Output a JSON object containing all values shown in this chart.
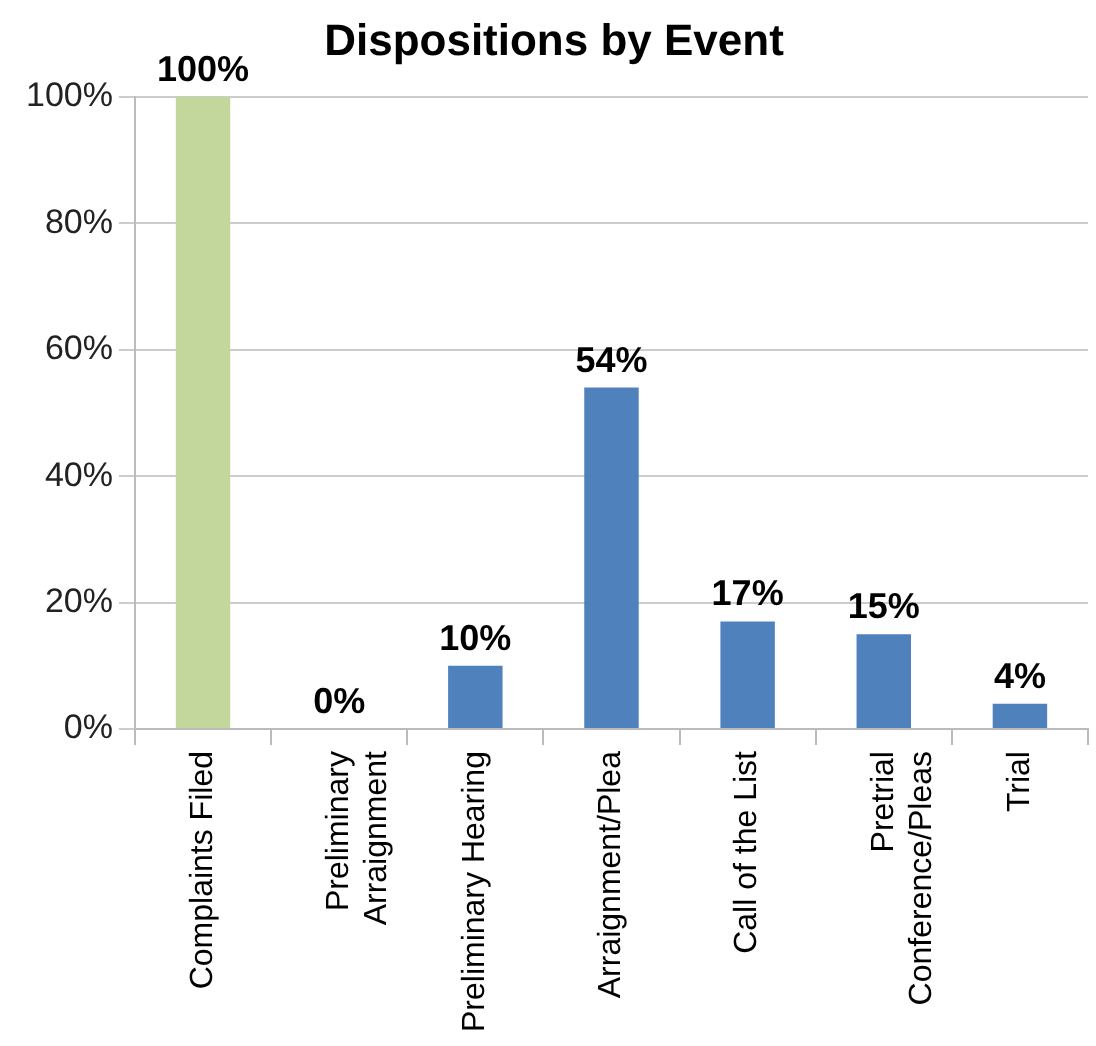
{
  "chart_data": {
    "type": "bar",
    "title": "Dispositions by Event",
    "categories": [
      "Complaints Filed",
      "Preliminary Arraignment",
      "Preliminary Hearing",
      "Arraignment/Plea",
      "Call of the List",
      "Pretrial Conference/Pleas",
      "Trial"
    ],
    "values": [
      100,
      0,
      10,
      54,
      17,
      15,
      4
    ],
    "colors": [
      "#c3d69b",
      "#4f81bd",
      "#4f81bd",
      "#4f81bd",
      "#4f81bd",
      "#4f81bd",
      "#4f81bd"
    ],
    "value_labels": [
      "100%",
      "0%",
      "10%",
      "54%",
      "17%",
      "15%",
      "4%"
    ],
    "ylim": [
      0,
      100
    ],
    "yticks": [
      {
        "value": 0,
        "label": "0%"
      },
      {
        "value": 20,
        "label": "20%"
      },
      {
        "value": 40,
        "label": "40%"
      },
      {
        "value": 60,
        "label": "60%"
      },
      {
        "value": 80,
        "label": "80%"
      },
      {
        "value": 100,
        "label": "100%"
      }
    ],
    "grid": "y",
    "legend": false
  }
}
